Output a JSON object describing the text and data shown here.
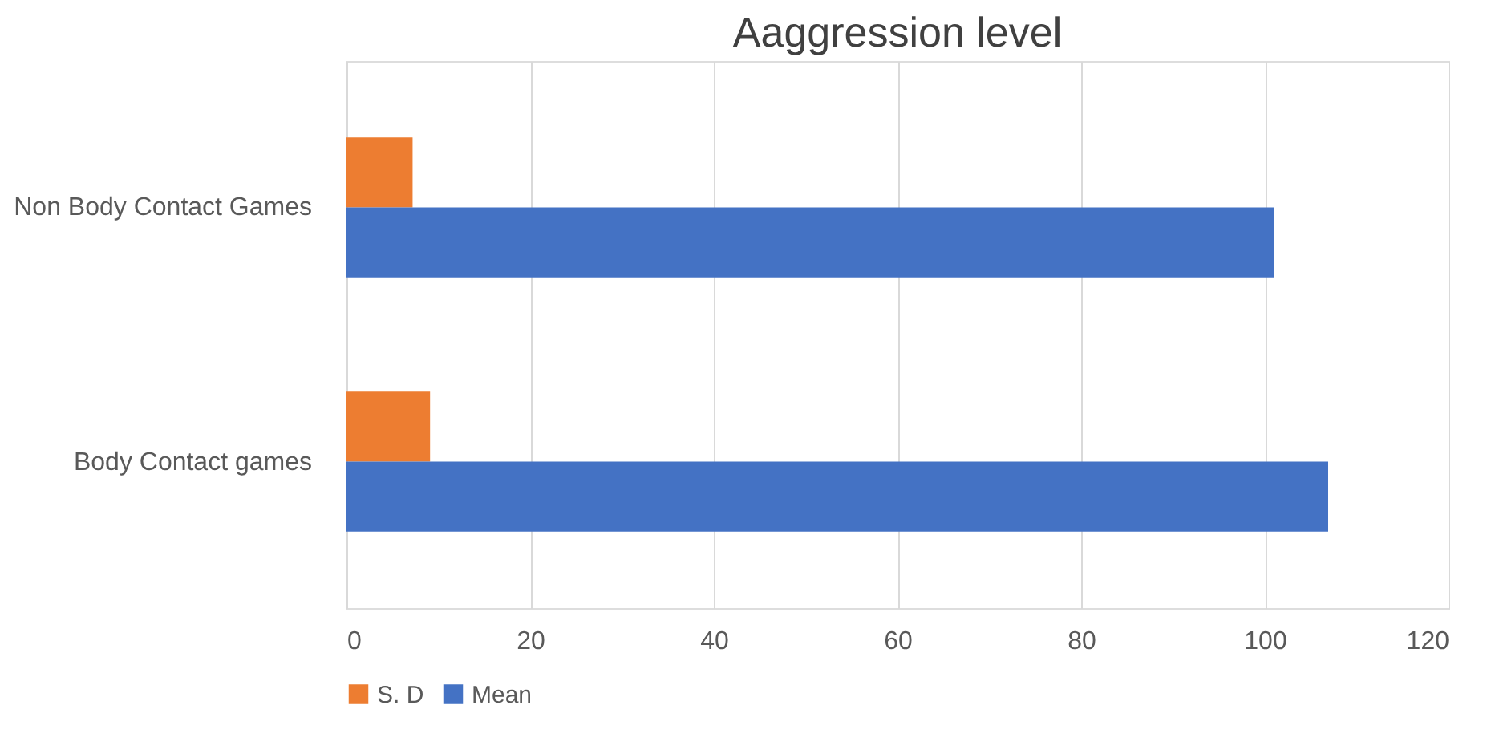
{
  "chart_data": {
    "type": "bar",
    "orientation": "horizontal",
    "title": "Aaggression level",
    "categories": [
      "Non Body Contact Games",
      "Body Contact games"
    ],
    "series": [
      {
        "name": "S. D",
        "color": "#ed7d31",
        "values": [
          7.2,
          9.1
        ]
      },
      {
        "name": "Mean",
        "color": "#4472c4",
        "values": [
          101.0,
          106.9
        ]
      }
    ],
    "xlim": [
      0,
      120
    ],
    "xticks": [
      0,
      20,
      40,
      60,
      80,
      100,
      120
    ],
    "grid": "x",
    "legend": "bottom"
  }
}
